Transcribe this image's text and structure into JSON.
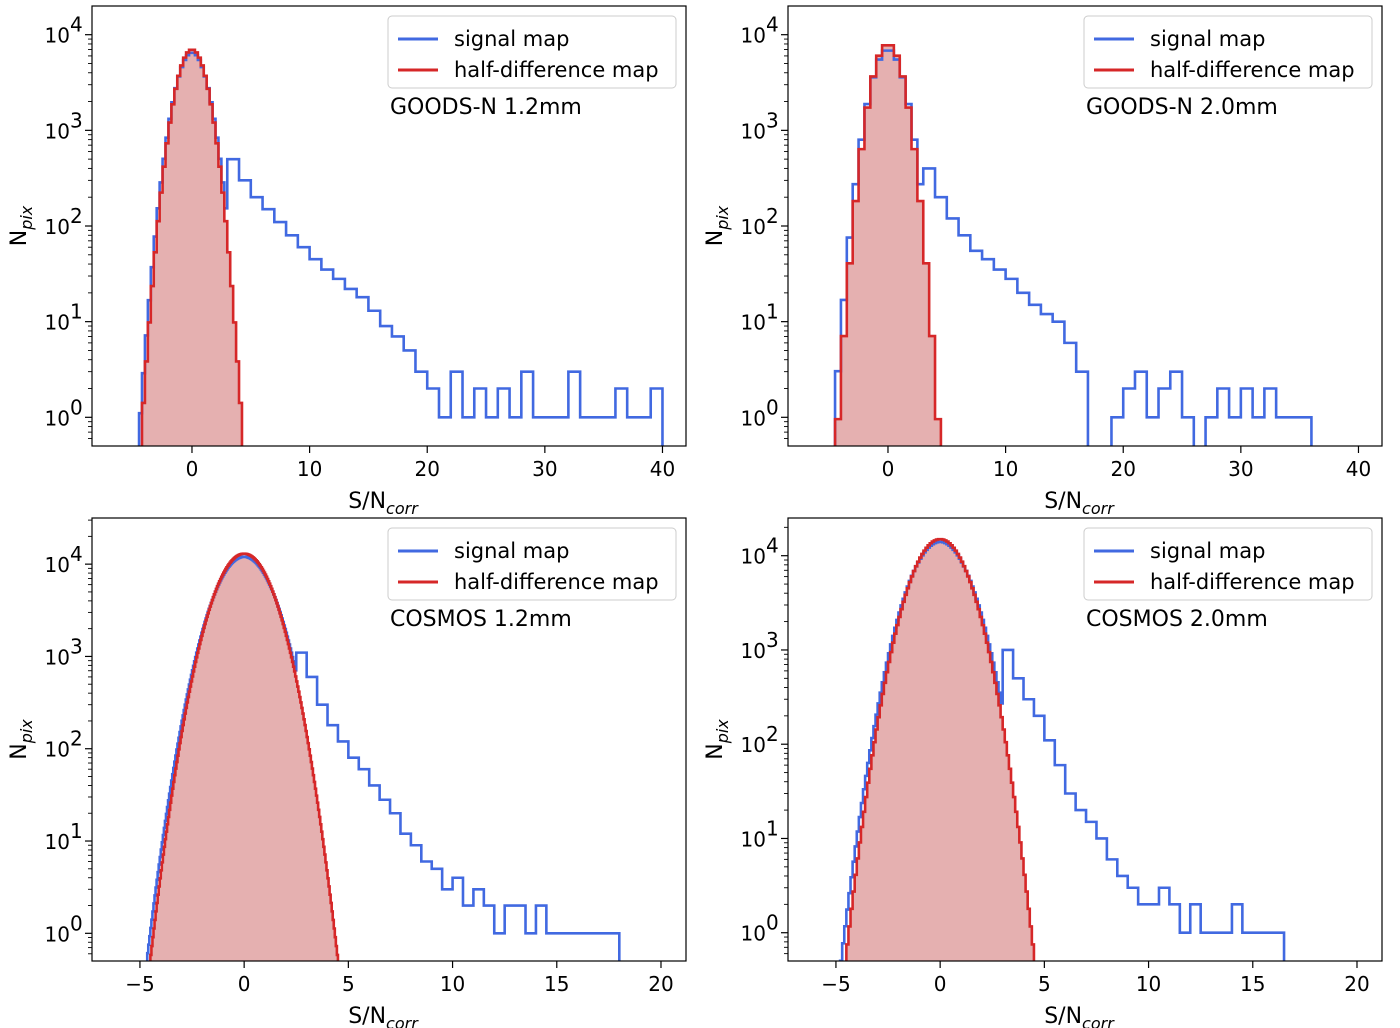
{
  "colors": {
    "signal": "#4169e1",
    "half_difference": "#d62728",
    "fill": "#e5b0b0"
  },
  "chart_data": [
    {
      "type": "histogram",
      "annotation": "GOODS-N 1.2mm",
      "xlabel_main": "S/N",
      "xlabel_sub": "corr",
      "ylabel_main": "N",
      "ylabel_sub": "pix",
      "xlim": [
        -8.5,
        42
      ],
      "ylim_log10": [
        -0.3,
        4.3
      ],
      "y_scale": "log",
      "xticks": [
        0,
        10,
        20,
        30,
        40
      ],
      "xtick_labels": [
        "0",
        "10",
        "20",
        "30",
        "40"
      ],
      "yticks": [
        0,
        1,
        2,
        3,
        4
      ],
      "ytick_labels": [
        "10",
        "10",
        "10",
        "10",
        "10"
      ],
      "ytick_exponents": [
        "0",
        "1",
        "2",
        "3",
        "4"
      ],
      "legend": {
        "position": "upper right",
        "entries": [
          "signal map",
          "half-difference map"
        ]
      },
      "half_difference_gauss": {
        "mu": 0,
        "sigma": 1.0,
        "peak": 7000,
        "xmin": -5,
        "xmax": 5,
        "bin": 0.25
      },
      "signal": {
        "core": {
          "mu": 0,
          "sigma": 1.05,
          "peak": 6500,
          "xmin": -5,
          "xmax": 3,
          "bin": 0.25
        },
        "tail": [
          [
            3,
            500
          ],
          [
            4,
            300
          ],
          [
            5,
            200
          ],
          [
            6,
            150
          ],
          [
            7,
            110
          ],
          [
            8,
            80
          ],
          [
            9,
            60
          ],
          [
            10,
            45
          ],
          [
            11,
            35
          ],
          [
            12,
            28
          ],
          [
            13,
            22
          ],
          [
            14,
            18
          ],
          [
            15,
            13
          ],
          [
            16,
            9
          ],
          [
            17,
            7
          ],
          [
            18,
            5
          ],
          [
            19,
            3
          ],
          [
            20,
            2
          ],
          [
            21,
            1
          ],
          [
            22,
            3
          ],
          [
            23,
            1
          ],
          [
            24,
            2
          ],
          [
            25,
            1
          ],
          [
            26,
            2
          ],
          [
            27,
            1
          ],
          [
            28,
            3
          ],
          [
            29,
            1
          ],
          [
            30,
            1
          ],
          [
            31,
            1
          ],
          [
            32,
            3
          ],
          [
            33,
            1
          ],
          [
            34,
            1
          ],
          [
            35,
            1
          ],
          [
            36,
            2
          ],
          [
            37,
            1
          ],
          [
            38,
            1
          ],
          [
            39,
            2
          ]
        ]
      }
    },
    {
      "type": "histogram",
      "annotation": "GOODS-N 2.0mm",
      "xlabel_main": "S/N",
      "xlabel_sub": "corr",
      "ylabel_main": "N",
      "ylabel_sub": "pix",
      "xlim": [
        -8.5,
        42
      ],
      "ylim_log10": [
        -0.3,
        4.3
      ],
      "y_scale": "log",
      "xticks": [
        0,
        10,
        20,
        30,
        40
      ],
      "xtick_labels": [
        "0",
        "10",
        "20",
        "30",
        "40"
      ],
      "yticks": [
        0,
        1,
        2,
        3,
        4
      ],
      "ytick_labels": [
        "10",
        "10",
        "10",
        "10",
        "10"
      ],
      "ytick_exponents": [
        "0",
        "1",
        "2",
        "3",
        "4"
      ],
      "legend": {
        "position": "upper right",
        "entries": [
          "signal map",
          "half-difference map"
        ]
      },
      "half_difference_gauss": {
        "mu": 0,
        "sigma": 1.0,
        "peak": 8000,
        "xmin": -5,
        "xmax": 5,
        "bin": 0.5
      },
      "signal": {
        "core": {
          "mu": 0,
          "sigma": 1.08,
          "peak": 7000,
          "xmin": -5.5,
          "xmax": 3,
          "bin": 0.5
        },
        "tail": [
          [
            3,
            400
          ],
          [
            4,
            200
          ],
          [
            5,
            120
          ],
          [
            6,
            80
          ],
          [
            7,
            55
          ],
          [
            8,
            45
          ],
          [
            9,
            35
          ],
          [
            10,
            28
          ],
          [
            11,
            20
          ],
          [
            12,
            15
          ],
          [
            13,
            12
          ],
          [
            14,
            10
          ],
          [
            15,
            6
          ],
          [
            16,
            3
          ],
          [
            17,
            0
          ],
          [
            19,
            1
          ],
          [
            20,
            2
          ],
          [
            21,
            3
          ],
          [
            22,
            1
          ],
          [
            23,
            2
          ],
          [
            24,
            3
          ],
          [
            25,
            1
          ],
          [
            26,
            0
          ],
          [
            27,
            1
          ],
          [
            28,
            2
          ],
          [
            29,
            1
          ],
          [
            30,
            2
          ],
          [
            31,
            1
          ],
          [
            32,
            2
          ],
          [
            33,
            1
          ],
          [
            34,
            1
          ],
          [
            35,
            1
          ]
        ]
      }
    },
    {
      "type": "histogram",
      "annotation": "COSMOS 1.2mm",
      "xlabel_main": "S/N",
      "xlabel_sub": "corr",
      "ylabel_main": "N",
      "ylabel_sub": "pix",
      "xlim": [
        -7.3,
        21.2
      ],
      "ylim_log10": [
        -0.3,
        4.5
      ],
      "y_scale": "log",
      "xticks": [
        -5,
        0,
        5,
        10,
        15,
        20
      ],
      "xtick_labels": [
        "−5",
        "0",
        "5",
        "10",
        "15",
        "20"
      ],
      "yticks": [
        0,
        1,
        2,
        3,
        4
      ],
      "ytick_labels": [
        "10",
        "10",
        "10",
        "10",
        "10"
      ],
      "ytick_exponents": [
        "0",
        "1",
        "2",
        "3",
        "4"
      ],
      "legend": {
        "position": "upper right",
        "entries": [
          "signal map",
          "half-difference map"
        ]
      },
      "half_difference_gauss": {
        "mu": 0,
        "sigma": 1.0,
        "peak": 13000,
        "xmin": -5,
        "xmax": 5,
        "bin": 0.05
      },
      "signal": {
        "core": {
          "mu": 0,
          "sigma": 1.04,
          "peak": 12000,
          "xmin": -5.5,
          "xmax": 2.5,
          "bin": 0.05
        },
        "tail": [
          [
            2.5,
            1100
          ],
          [
            3,
            600
          ],
          [
            3.5,
            300
          ],
          [
            4,
            180
          ],
          [
            4.5,
            120
          ],
          [
            5,
            80
          ],
          [
            5.5,
            60
          ],
          [
            6,
            40
          ],
          [
            6.5,
            28
          ],
          [
            7,
            20
          ],
          [
            7.5,
            12
          ],
          [
            8,
            9
          ],
          [
            8.5,
            6
          ],
          [
            9,
            5
          ],
          [
            9.5,
            3
          ],
          [
            10,
            4
          ],
          [
            10.5,
            2
          ],
          [
            11,
            3
          ],
          [
            11.5,
            2
          ],
          [
            12,
            1
          ],
          [
            12.5,
            2
          ],
          [
            13,
            2
          ],
          [
            13.5,
            1
          ],
          [
            14,
            2
          ],
          [
            14.5,
            1
          ],
          [
            15,
            1
          ],
          [
            15.5,
            1
          ],
          [
            16,
            1
          ],
          [
            16.5,
            1
          ],
          [
            17,
            1
          ],
          [
            17.5,
            1
          ]
        ]
      }
    },
    {
      "type": "histogram",
      "annotation": "COSMOS 2.0mm",
      "xlabel_main": "S/N",
      "xlabel_sub": "corr",
      "ylabel_main": "N",
      "ylabel_sub": "pix",
      "xlim": [
        -7.3,
        21.2
      ],
      "ylim_log10": [
        -0.3,
        4.4
      ],
      "y_scale": "log",
      "xticks": [
        -5,
        0,
        5,
        10,
        15,
        20
      ],
      "xtick_labels": [
        "−5",
        "0",
        "5",
        "10",
        "15",
        "20"
      ],
      "yticks": [
        0,
        1,
        2,
        3,
        4
      ],
      "ytick_labels": [
        "10",
        "10",
        "10",
        "10",
        "10"
      ],
      "ytick_exponents": [
        "0",
        "1",
        "2",
        "3",
        "4"
      ],
      "legend": {
        "position": "upper right",
        "entries": [
          "signal map",
          "half-difference map"
        ]
      },
      "half_difference_gauss": {
        "mu": 0,
        "sigma": 1.0,
        "peak": 15000,
        "xmin": -5,
        "xmax": 5,
        "bin": 0.1
      },
      "signal": {
        "core": {
          "mu": 0,
          "sigma": 1.05,
          "peak": 14000,
          "xmin": -5,
          "xmax": 3,
          "bin": 0.1
        },
        "tail": [
          [
            3,
            1000
          ],
          [
            3.5,
            500
          ],
          [
            4,
            300
          ],
          [
            4.5,
            200
          ],
          [
            5,
            110
          ],
          [
            5.5,
            60
          ],
          [
            6,
            30
          ],
          [
            6.5,
            20
          ],
          [
            7,
            15
          ],
          [
            7.5,
            10
          ],
          [
            8,
            6
          ],
          [
            8.5,
            4
          ],
          [
            9,
            3
          ],
          [
            9.5,
            2
          ],
          [
            10,
            2
          ],
          [
            10.5,
            3
          ],
          [
            11,
            2
          ],
          [
            11.5,
            1
          ],
          [
            12,
            2
          ],
          [
            12.5,
            1
          ],
          [
            13,
            1
          ],
          [
            13.5,
            1
          ],
          [
            14,
            2
          ],
          [
            14.5,
            1
          ],
          [
            15,
            1
          ],
          [
            15.5,
            1
          ],
          [
            16,
            1
          ]
        ]
      }
    }
  ]
}
